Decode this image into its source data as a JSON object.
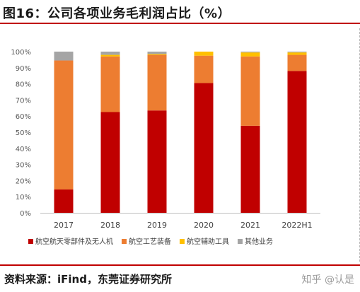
{
  "title": "图16：公司各项业务毛利润占比（%）",
  "source": "资料来源：iFind，东莞证券研究所",
  "watermark": "知乎 @认是",
  "chart_data": {
    "type": "bar",
    "stacked": true,
    "categories": [
      "2017",
      "2018",
      "2019",
      "2020",
      "2021",
      "2022H1"
    ],
    "series": [
      {
        "name": "航空航天零部件及无人机",
        "color": "#c00000",
        "values": [
          14.5,
          62.5,
          63.5,
          80.5,
          54,
          88
        ]
      },
      {
        "name": "航空工艺装备",
        "color": "#ed7d31",
        "values": [
          80,
          34.5,
          34.5,
          17,
          43,
          10
        ]
      },
      {
        "name": "航空辅助工具",
        "color": "#ffc000",
        "values": [
          0,
          1,
          0.5,
          2.5,
          2.5,
          1.5
        ]
      },
      {
        "name": "其他业务",
        "color": "#a5a5a5",
        "values": [
          5.5,
          2,
          1.5,
          0,
          0.5,
          0.5
        ]
      }
    ],
    "yTicks": [
      "0%",
      "10%",
      "20%",
      "30%",
      "40%",
      "50%",
      "60%",
      "70%",
      "80%",
      "90%",
      "100%"
    ],
    "ylim": [
      0,
      100
    ],
    "grid": false,
    "legend_position": "bottom"
  }
}
